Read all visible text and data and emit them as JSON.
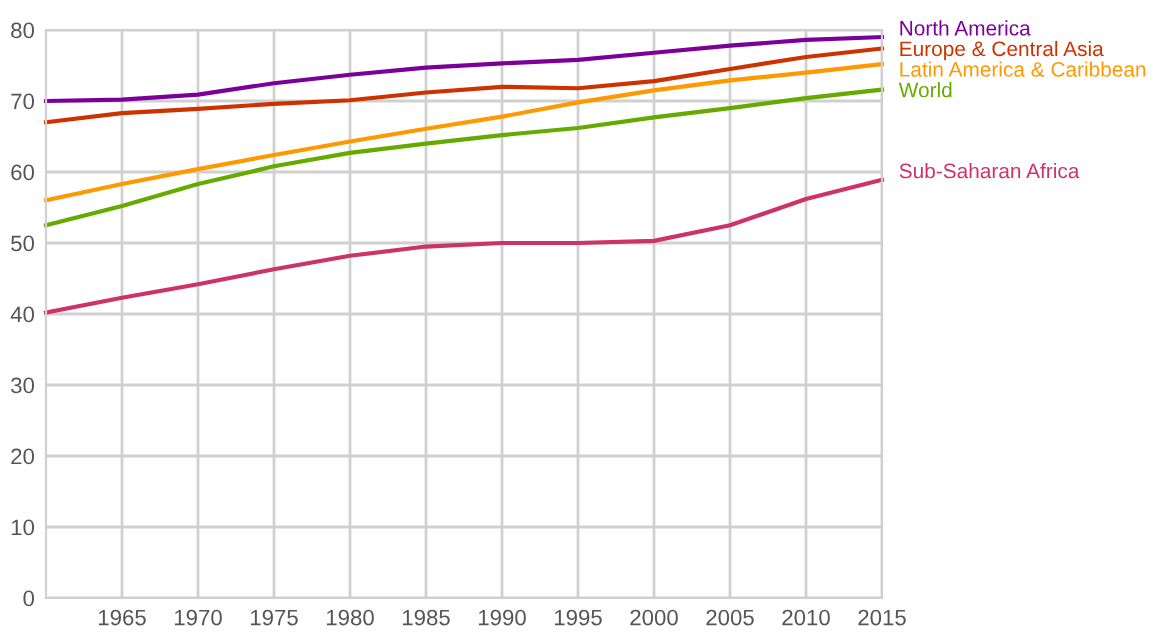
{
  "chart_data": {
    "type": "line",
    "x": [
      1960,
      1965,
      1970,
      1975,
      1980,
      1985,
      1990,
      1995,
      2000,
      2005,
      2010,
      2015
    ],
    "series": [
      {
        "name": "North America",
        "color": "#7b0099",
        "values": [
          70.0,
          70.2,
          70.9,
          72.5,
          73.7,
          74.7,
          75.3,
          75.8,
          76.8,
          77.8,
          78.6,
          79.0
        ]
      },
      {
        "name": "Europe & Central Asia",
        "color": "#cc3300",
        "values": [
          67.0,
          68.3,
          68.9,
          69.6,
          70.1,
          71.2,
          72.0,
          71.8,
          72.8,
          74.5,
          76.2,
          77.4
        ]
      },
      {
        "name": "Latin America & Caribbean",
        "color": "#ff9900",
        "values": [
          56.0,
          58.3,
          60.4,
          62.4,
          64.3,
          66.1,
          67.8,
          69.8,
          71.5,
          72.9,
          74.0,
          75.2
        ]
      },
      {
        "name": "World",
        "color": "#66aa00",
        "values": [
          52.5,
          55.2,
          58.3,
          60.8,
          62.7,
          64.0,
          65.2,
          66.2,
          67.7,
          69.0,
          70.4,
          71.6
        ]
      },
      {
        "name": "Sub-Saharan Africa",
        "color": "#cc3366",
        "values": [
          40.2,
          42.3,
          44.2,
          46.3,
          48.2,
          49.5,
          50.0,
          50.0,
          50.3,
          52.5,
          56.2,
          58.9
        ]
      }
    ],
    "xlim": [
      1960,
      2015
    ],
    "xticks": [
      1965,
      1970,
      1975,
      1980,
      1985,
      1990,
      1995,
      2000,
      2005,
      2010,
      2015
    ],
    "ylim": [
      0,
      80
    ],
    "yticks": [
      0,
      10,
      20,
      30,
      40,
      50,
      60,
      70,
      80
    ],
    "grid": true,
    "marker": "none",
    "line_style": "solid"
  }
}
